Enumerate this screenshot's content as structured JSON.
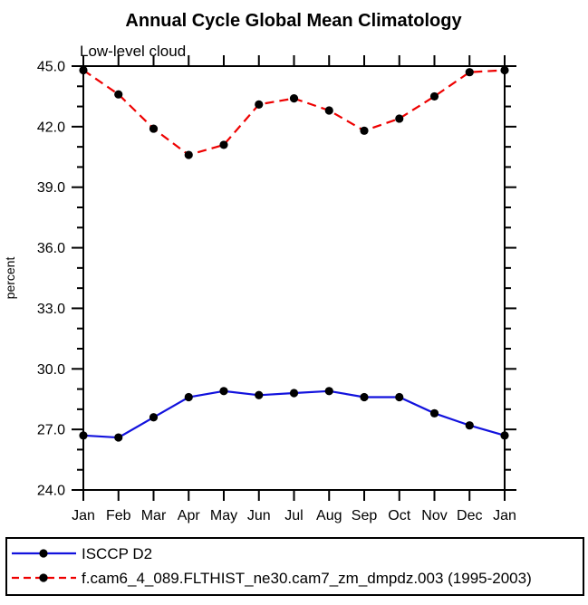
{
  "chart_data": {
    "type": "line",
    "title": "Annual Cycle Global Mean Climatology",
    "subtitle": "Low-level cloud",
    "ylabel": "percent",
    "xlabel": "",
    "categories": [
      "Jan",
      "Feb",
      "Mar",
      "Apr",
      "May",
      "Jun",
      "Jul",
      "Aug",
      "Sep",
      "Oct",
      "Nov",
      "Dec",
      "Jan"
    ],
    "ylim": [
      24.0,
      45.0
    ],
    "ytick_major_interval": 3.0,
    "ytick_minor_interval": 1.0,
    "ytick_label_format": "one_decimal",
    "grid": false,
    "frame_color": "#000000",
    "legend_position": "bottom-box",
    "series": [
      {
        "name": "ISCCP D2",
        "color": "#1212DD",
        "line_style": "solid",
        "marker": "filled-circle",
        "marker_color": "#000000",
        "values": [
          26.7,
          26.6,
          27.6,
          28.6,
          28.9,
          28.7,
          28.8,
          28.9,
          28.6,
          28.6,
          27.8,
          27.2,
          26.7
        ]
      },
      {
        "name": "f.cam6_4_089.FLTHIST_ne30.cam7_zm_dmpdz.003 (1995-2003)",
        "color": "#EE0000",
        "line_style": "dashed",
        "marker": "filled-circle",
        "marker_color": "#000000",
        "values": [
          44.8,
          43.6,
          41.9,
          40.6,
          41.1,
          43.1,
          43.4,
          42.8,
          41.8,
          42.4,
          43.5,
          44.7,
          44.8
        ]
      }
    ]
  }
}
